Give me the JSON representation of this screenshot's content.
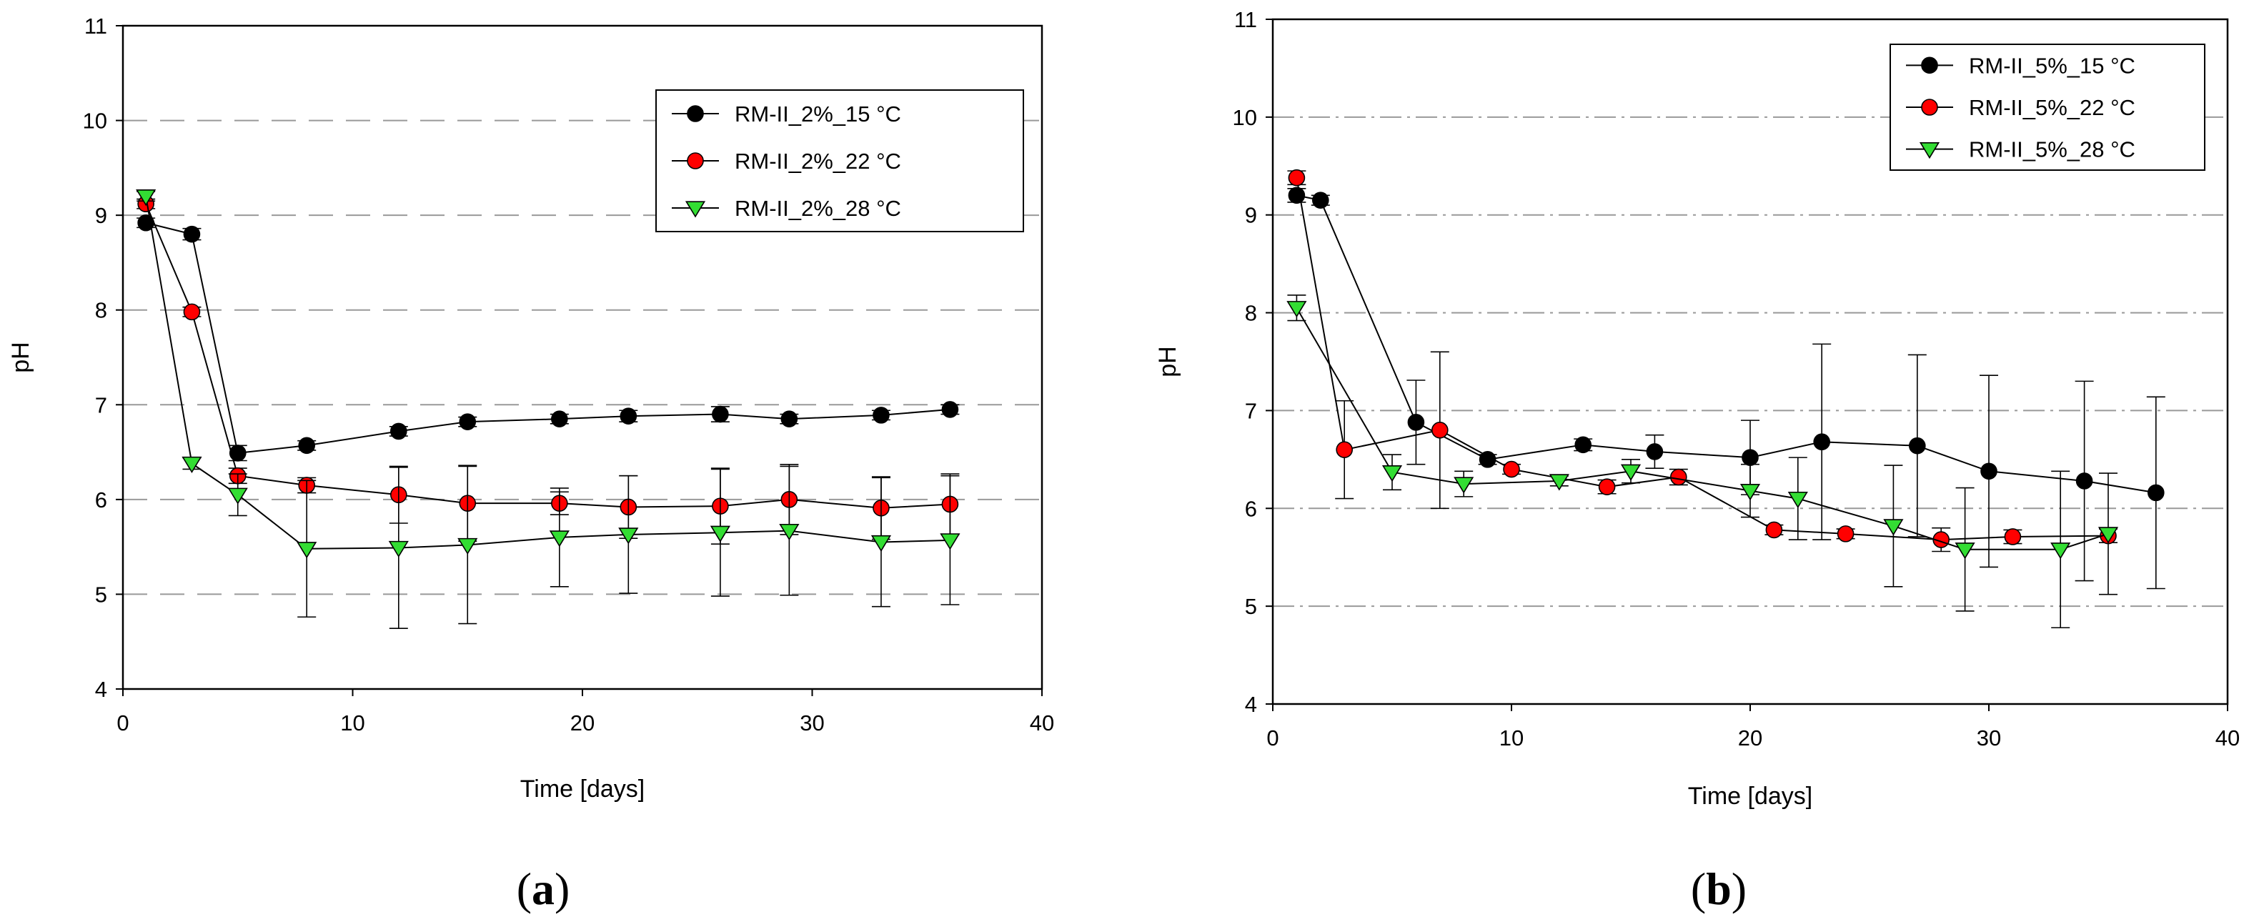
{
  "chart_data": [
    {
      "type": "line",
      "panel_label": "a",
      "xlabel": "Time [days]",
      "ylabel": "pH",
      "xlim": [
        0,
        40
      ],
      "ylim": [
        4,
        11
      ],
      "xticks": [
        0,
        10,
        20,
        30,
        40
      ],
      "yticks": [
        4,
        5,
        6,
        7,
        8,
        9,
        10,
        11
      ],
      "grid": "horizontal-dashed",
      "legend_position": "top-right",
      "series": [
        {
          "name": "RM-II_2%_15 °C",
          "marker": "circle",
          "color": "#000000",
          "x": [
            1,
            3,
            5,
            8,
            12,
            15,
            19,
            22,
            26,
            29,
            33,
            36
          ],
          "y": [
            8.92,
            8.8,
            6.49,
            6.57,
            6.72,
            6.82,
            6.85,
            6.88,
            6.9,
            6.85,
            6.89,
            6.95
          ],
          "err": [
            0.05,
            0.06,
            0.08,
            0.05,
            0.05,
            0.05,
            0.05,
            0.06,
            0.08,
            0.05,
            0.05,
            0.05
          ]
        },
        {
          "name": "RM-II_2%_22 °C",
          "marker": "circle",
          "color": "#ff0000",
          "x": [
            1,
            3,
            5,
            8,
            12,
            15,
            19,
            22,
            26,
            29,
            33,
            36
          ],
          "y": [
            9.12,
            7.98,
            6.25,
            6.15,
            6.05,
            5.96,
            5.96,
            5.92,
            5.93,
            6.0,
            5.91,
            5.95
          ],
          "err": [
            0.05,
            0.05,
            0.08,
            0.08,
            0.3,
            0.4,
            0.12,
            0.33,
            0.4,
            0.37,
            0.33,
            0.32
          ]
        },
        {
          "name": "RM-II_2%_28 °C",
          "marker": "triangle-down",
          "color": "#33dd33",
          "x": [
            1,
            3,
            5,
            8,
            12,
            15,
            19,
            22,
            26,
            29,
            33,
            36
          ],
          "y": [
            9.2,
            6.38,
            6.05,
            5.48,
            5.49,
            5.52,
            5.6,
            5.63,
            5.65,
            5.67,
            5.55,
            5.57
          ],
          "err": [
            0.05,
            0.06,
            0.22,
            0.72,
            0.85,
            0.83,
            0.52,
            0.62,
            0.67,
            0.68,
            0.68,
            0.68
          ]
        }
      ]
    },
    {
      "type": "line",
      "panel_label": "b",
      "xlabel": "Time [days]",
      "ylabel": "pH",
      "xlim": [
        0,
        40
      ],
      "ylim": [
        4,
        11
      ],
      "xticks": [
        0,
        10,
        20,
        30,
        40
      ],
      "yticks": [
        4,
        5,
        6,
        7,
        8,
        9,
        10,
        11
      ],
      "grid": "horizontal-dashdot",
      "legend_position": "top-right",
      "series": [
        {
          "name": "RM-II_5%_15 °C",
          "marker": "circle",
          "color": "#000000",
          "x": [
            1,
            2,
            6,
            9,
            13,
            16,
            20,
            23,
            27,
            30,
            34,
            37
          ],
          "y": [
            9.2,
            9.15,
            6.88,
            6.5,
            6.65,
            6.58,
            6.52,
            6.68,
            6.64,
            6.38,
            6.28,
            6.16
          ],
          "err": [
            0.07,
            0.05,
            0.43,
            0.05,
            0.06,
            0.17,
            0.38,
            1.0,
            0.93,
            0.98,
            1.02,
            0.98
          ]
        },
        {
          "name": "RM-II_5%_22 °C",
          "marker": "circle",
          "color": "#ff0000",
          "x": [
            1,
            3,
            7,
            10,
            14,
            17,
            21,
            24,
            28,
            31,
            35
          ],
          "y": [
            9.38,
            6.6,
            6.8,
            6.4,
            6.22,
            6.32,
            5.78,
            5.74,
            5.68,
            5.71,
            5.72
          ],
          "err": [
            0.07,
            0.5,
            0.8,
            0.05,
            0.07,
            0.08,
            0.05,
            0.05,
            0.12,
            0.07,
            0.07
          ]
        },
        {
          "name": "RM-II_5%_28 °C",
          "marker": "triangle-down",
          "color": "#33dd33",
          "x": [
            1,
            5,
            8,
            12,
            15,
            20,
            22,
            26,
            29,
            33,
            35
          ],
          "y": [
            8.05,
            6.37,
            6.25,
            6.28,
            6.38,
            6.18,
            6.1,
            5.82,
            5.58,
            5.58,
            5.74
          ],
          "err": [
            0.13,
            0.18,
            0.13,
            0.05,
            0.12,
            0.27,
            0.42,
            0.62,
            0.63,
            0.8,
            0.62
          ]
        }
      ]
    }
  ]
}
